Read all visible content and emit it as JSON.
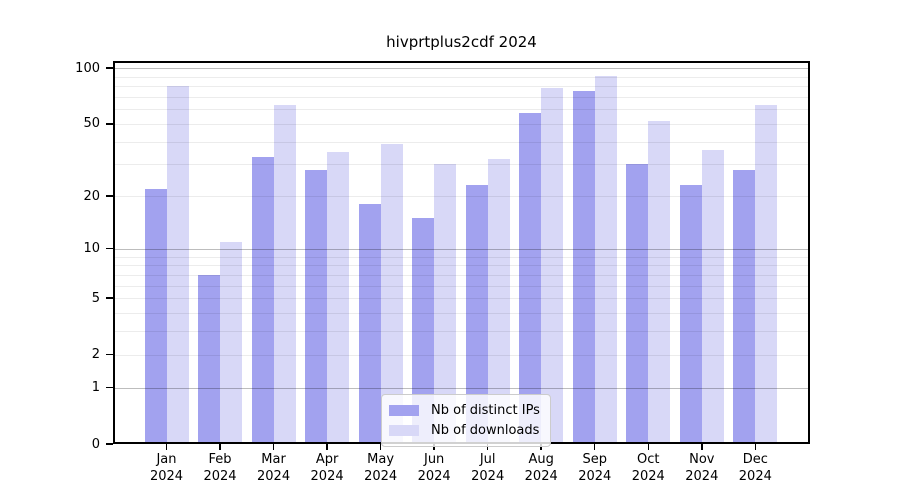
{
  "title": "hivprtplus2cdf 2024",
  "colors": {
    "distinct_ips_bar": "#a2a2ef",
    "downloads_bar": "#d8d8f7",
    "axis_frame": "#000000",
    "legend_border": "#cccccc"
  },
  "legend": {
    "position": "lower center",
    "items": [
      {
        "label": "Nb of distinct IPs"
      },
      {
        "label": "Nb of downloads"
      }
    ]
  },
  "chart_data": {
    "type": "bar",
    "title": "hivprtplus2cdf 2024",
    "categories": [
      "Jan",
      "Feb",
      "Mar",
      "Apr",
      "May",
      "Jun",
      "Jul",
      "Aug",
      "Sep",
      "Oct",
      "Nov",
      "Dec"
    ],
    "year": "2024",
    "series": [
      {
        "name": "Nb of distinct IPs",
        "color": "#a2a2ef",
        "values": [
          22,
          7,
          33,
          28,
          18,
          15,
          23,
          57,
          75,
          30,
          23,
          28
        ]
      },
      {
        "name": "Nb of downloads",
        "color": "#d8d8f7",
        "values": [
          80,
          11,
          63,
          35,
          39,
          30,
          32,
          78,
          91,
          52,
          36,
          63
        ]
      }
    ],
    "xlabel": "",
    "ylabel": "",
    "yscale": "log10(value+1)",
    "ylim": [
      0,
      110
    ],
    "yticks": [
      0,
      1,
      2,
      5,
      10,
      20,
      50,
      100
    ],
    "major_gridlines": [
      1,
      10,
      100
    ],
    "minor_gridlines": [
      2,
      3,
      4,
      5,
      6,
      7,
      8,
      9,
      20,
      30,
      40,
      50,
      60,
      70,
      80,
      90
    ],
    "grid": "on",
    "legend_position": "lower center"
  }
}
